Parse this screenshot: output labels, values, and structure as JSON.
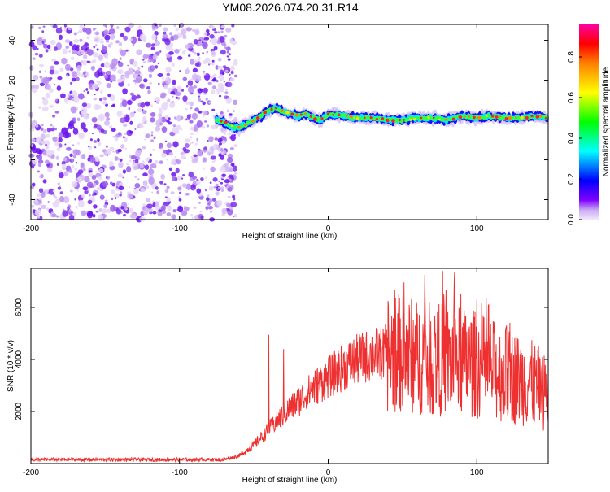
{
  "title": "YM08.2026.074.20.31.R14",
  "chart_data": [
    {
      "type": "heatmap",
      "xlabel": "Height of straight line (km)",
      "ylabel": "Frequency (Hz)",
      "xlim": [
        -200,
        148
      ],
      "ylim": [
        -50,
        48
      ],
      "x_ticks": [
        "-200",
        "-100",
        "0",
        "100"
      ],
      "x_tick_values": [
        -200,
        -100,
        0,
        100
      ],
      "y_ticks": [
        "40",
        "20",
        "0",
        "-20",
        "-40"
      ],
      "y_tick_values": [
        40,
        20,
        0,
        -20,
        -40
      ],
      "noise_region_x": [
        -200,
        -62
      ],
      "signal_track": [
        {
          "x": -75,
          "f": 0
        },
        {
          "x": -70,
          "f": -1
        },
        {
          "x": -66,
          "f": -3
        },
        {
          "x": -60,
          "f": -4
        },
        {
          "x": -55,
          "f": -2
        },
        {
          "x": -50,
          "f": 0
        },
        {
          "x": -45,
          "f": 2
        },
        {
          "x": -40,
          "f": 5
        },
        {
          "x": -35,
          "f": 6
        },
        {
          "x": -30,
          "f": 4
        },
        {
          "x": -25,
          "f": 3
        },
        {
          "x": -20,
          "f": 2
        },
        {
          "x": -15,
          "f": 3
        },
        {
          "x": -10,
          "f": 1
        },
        {
          "x": -5,
          "f": 0
        },
        {
          "x": 0,
          "f": 3
        },
        {
          "x": 10,
          "f": 2
        },
        {
          "x": 20,
          "f": 1
        },
        {
          "x": 30,
          "f": 1
        },
        {
          "x": 40,
          "f": 0
        },
        {
          "x": 50,
          "f": 0
        },
        {
          "x": 60,
          "f": 1
        },
        {
          "x": 70,
          "f": 1
        },
        {
          "x": 80,
          "f": 0
        },
        {
          "x": 90,
          "f": 2
        },
        {
          "x": 100,
          "f": 1
        },
        {
          "x": 110,
          "f": 2
        },
        {
          "x": 120,
          "f": 1
        },
        {
          "x": 130,
          "f": 1
        },
        {
          "x": 140,
          "f": 2
        },
        {
          "x": 148,
          "f": 1
        }
      ],
      "colorbar": {
        "label": "Normalized spectral amplitude",
        "ticks": [
          "0.0",
          "0.2",
          "0.4",
          "0.6",
          "0.8"
        ],
        "tick_values": [
          0.0,
          0.2,
          0.4,
          0.6,
          0.8
        ],
        "range": [
          0,
          0.96
        ],
        "colors": [
          "#e8d8f8",
          "#8000ff",
          "#0000ff",
          "#00ffff",
          "#00ff00",
          "#ffff00",
          "#ff8000",
          "#ff0000",
          "#ff00a0"
        ]
      }
    },
    {
      "type": "line",
      "xlabel": "Height of straight line (km)",
      "ylabel": "SNR (10 * v/v)",
      "xlim": [
        -200,
        148
      ],
      "ylim": [
        0,
        7500
      ],
      "x_ticks": [
        "-200",
        "-100",
        "0",
        "100"
      ],
      "x_tick_values": [
        -200,
        -100,
        0,
        100
      ],
      "y_ticks": [
        "2000",
        "4000",
        "6000"
      ],
      "y_tick_values": [
        2000,
        4000,
        6000
      ],
      "color": "#ee3030",
      "envelope": [
        {
          "x": -200,
          "v": 150
        },
        {
          "x": -100,
          "v": 150
        },
        {
          "x": -70,
          "v": 150
        },
        {
          "x": -60,
          "v": 300
        },
        {
          "x": -50,
          "v": 700
        },
        {
          "x": -40,
          "v": 1300
        },
        {
          "x": -30,
          "v": 1900
        },
        {
          "x": -20,
          "v": 2400
        },
        {
          "x": -10,
          "v": 2900
        },
        {
          "x": 0,
          "v": 3300
        },
        {
          "x": 10,
          "v": 3700
        },
        {
          "x": 20,
          "v": 4000
        },
        {
          "x": 30,
          "v": 4200
        },
        {
          "x": 40,
          "v": 4300
        },
        {
          "x": 50,
          "v": 4200
        },
        {
          "x": 60,
          "v": 4100
        },
        {
          "x": 70,
          "v": 4000
        },
        {
          "x": 80,
          "v": 4000
        },
        {
          "x": 90,
          "v": 3900
        },
        {
          "x": 100,
          "v": 3800
        },
        {
          "x": 110,
          "v": 3600
        },
        {
          "x": 120,
          "v": 3400
        },
        {
          "x": 130,
          "v": 3200
        },
        {
          "x": 140,
          "v": 3000
        },
        {
          "x": 148,
          "v": 2600
        }
      ],
      "spikes": [
        {
          "x": -40,
          "v": 4950
        },
        {
          "x": -30,
          "v": 4400
        },
        {
          "x": 30,
          "v": 4300
        },
        {
          "x": 65,
          "v": 7250
        },
        {
          "x": 77,
          "v": 7400
        },
        {
          "x": 85,
          "v": 7350
        },
        {
          "x": 100,
          "v": 6300
        },
        {
          "x": 108,
          "v": 6100
        },
        {
          "x": 120,
          "v": 5300
        }
      ]
    }
  ]
}
